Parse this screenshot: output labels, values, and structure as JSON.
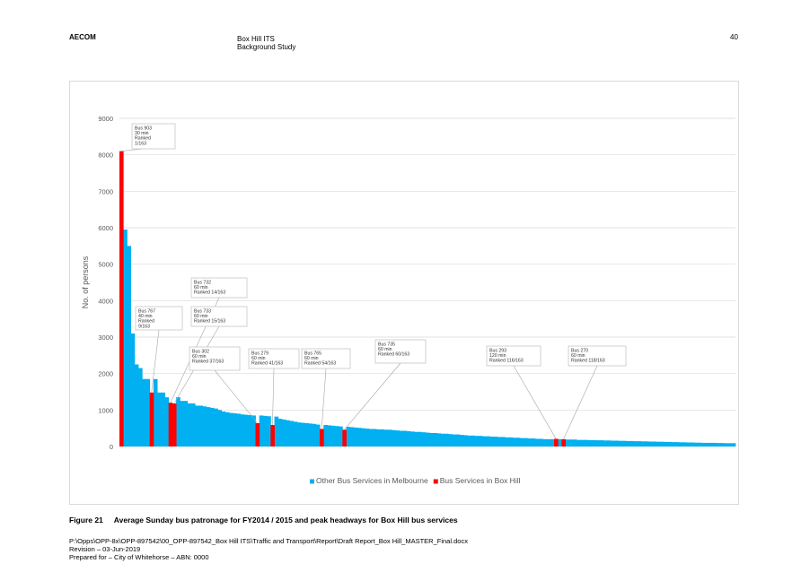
{
  "header": {
    "company": "AECOM",
    "title": "Box Hill ITS",
    "subtitle": "Background Study",
    "page_number": "40"
  },
  "figure": {
    "number": "Figure 21",
    "caption": "Average Sunday bus patronage for FY2014 / 2015 and peak headways for Box Hill bus services"
  },
  "footer": {
    "path": "P:\\Opps\\OPP-8x\\OPP-897542\\00_OPP-897542_Box Hill ITS\\Traffic and Transport\\Report\\Draft Report_Box Hill_MASTER_Final.docx",
    "revision": "Revision  – 03-Jun-2019",
    "prepared": "Prepared for – City of Whitehorse – ABN: 0000"
  },
  "colors": {
    "other": "#00b0f0",
    "boxhill": "#ff0000",
    "grid": "#d9d9d9",
    "axis_text": "#595959"
  },
  "chart_data": {
    "type": "bar",
    "title": "",
    "xlabel": "",
    "ylabel": "No. of persons",
    "ylim": [
      0,
      9000
    ],
    "yticks": [
      0,
      1000,
      2000,
      3000,
      4000,
      5000,
      6000,
      7000,
      8000,
      9000
    ],
    "grid": true,
    "legend_position": "bottom",
    "n_services": 163,
    "series": [
      {
        "name": "Other Bus Services in Melbourne",
        "color": "#00b0f0",
        "values": [
          5950,
          5500,
          3100,
          2250,
          2150,
          1850,
          1850,
          1850,
          1480,
          1480,
          1350,
          1350,
          1250,
          1250,
          1180,
          1180,
          1120,
          1120,
          1100,
          1080,
          1060,
          1040,
          1000,
          960,
          940,
          920,
          910,
          900,
          880,
          870,
          860,
          850,
          850,
          840,
          830,
          820,
          760,
          740,
          720,
          700,
          680,
          660,
          650,
          640,
          630,
          620,
          600,
          590,
          580,
          570,
          560,
          550,
          540,
          530,
          520,
          510,
          500,
          490,
          480,
          480,
          470,
          470,
          460,
          460,
          450,
          440,
          430,
          430,
          420,
          410,
          400,
          400,
          390,
          380,
          370,
          370,
          360,
          350,
          350,
          340,
          330,
          330,
          320,
          310,
          300,
          300,
          290,
          290,
          280,
          280,
          270,
          270,
          260,
          260,
          250,
          250,
          240,
          240,
          230,
          230,
          220,
          220,
          210,
          210,
          200,
          200,
          200,
          200,
          190,
          190,
          190,
          180,
          180,
          180,
          175,
          175,
          170,
          170,
          165,
          165,
          160,
          160,
          155,
          155,
          150,
          150,
          145,
          145,
          140,
          140,
          135,
          135,
          130,
          130,
          125,
          125,
          120,
          120,
          115,
          115,
          110,
          110,
          105,
          105,
          100,
          100,
          100,
          100,
          95,
          95,
          90,
          90,
          90,
          90,
          85,
          85,
          80,
          80,
          80,
          80
        ]
      },
      {
        "name": "Bus Services in Box Hill",
        "color": "#ff0000",
        "points": [
          {
            "rank": 1,
            "value": 8100
          },
          {
            "rank": 9,
            "value": 1480
          },
          {
            "rank": 14,
            "value": 1200
          },
          {
            "rank": 15,
            "value": 1180
          },
          {
            "rank": 37,
            "value": 640
          },
          {
            "rank": 41,
            "value": 590
          },
          {
            "rank": 54,
            "value": 480
          },
          {
            "rank": 60,
            "value": 460
          },
          {
            "rank": 116,
            "value": 210
          },
          {
            "rank": 118,
            "value": 200
          }
        ]
      }
    ],
    "annotations": [
      {
        "rank": 1,
        "lines": [
          "Bus 903",
          "30 min",
          "Ranked",
          "1/163"
        ]
      },
      {
        "rank": 9,
        "lines": [
          "Bus 767",
          "40 min",
          "Ranked",
          "9/163"
        ]
      },
      {
        "rank": 14,
        "lines": [
          "Bus 732",
          "60 min",
          "Ranked 14/163"
        ]
      },
      {
        "rank": 15,
        "lines": [
          "Bus 733",
          "60 min",
          "Ranked 15/163"
        ]
      },
      {
        "rank": 37,
        "lines": [
          "Bus 302",
          "60 min",
          "Ranked 37/163"
        ]
      },
      {
        "rank": 41,
        "lines": [
          "Bus 279",
          "60 min",
          "Ranked 41/163"
        ]
      },
      {
        "rank": 54,
        "lines": [
          "Bus 765",
          "60 min",
          "Ranked 54/163"
        ]
      },
      {
        "rank": 60,
        "lines": [
          "Bus 735",
          "60 min",
          "Ranked 60/163"
        ]
      },
      {
        "rank": 116,
        "lines": [
          "Bus 293",
          "120 min",
          "Ranked 116/163"
        ]
      },
      {
        "rank": 118,
        "lines": [
          "Bus 270",
          "60 min",
          "Ranked 118/163"
        ]
      }
    ]
  }
}
